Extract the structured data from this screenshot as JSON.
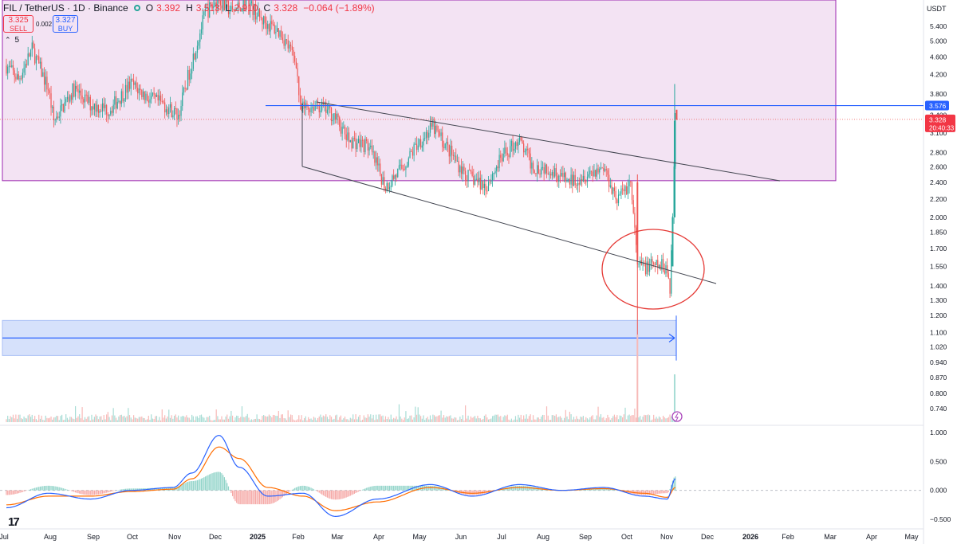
{
  "header": {
    "symbol": "FIL / TetherUS · 1D · Binance",
    "o_label": "O",
    "o": "3.392",
    "h_label": "H",
    "h": "3.513",
    "l_label": "L",
    "l": "2.910",
    "c_label": "C",
    "c": "3.328",
    "change": "−0.064 (−1.89%)"
  },
  "trade": {
    "sell_price": "3.325",
    "sell_label": "SELL",
    "spread": "0.002",
    "buy_price": "3.327",
    "buy_label": "BUY",
    "indicator_count": "5"
  },
  "axis_currency": "USDT",
  "colors": {
    "up": "#26a69a",
    "down": "#ef5350",
    "zone_fill": "#f3e3f3",
    "zone_border": "#9c27b0",
    "blue_line": "#2962ff",
    "circle": "#e53935",
    "macd_line": "#2962ff",
    "signal_line": "#ff6d00"
  },
  "chart_data": [
    {
      "type": "line",
      "title": "",
      "price_scale": "log",
      "y_ticks": [
        "5.400",
        "5.000",
        "4.600",
        "4.200",
        "3.800",
        "3.400",
        "3.100",
        "2.800",
        "2.600",
        "2.400",
        "2.200",
        "2.000",
        "1.850",
        "1.700",
        "1.550",
        "1.400",
        "1.300",
        "1.200",
        "1.100",
        "1.020",
        "0.940",
        "0.870",
        "0.800",
        "0.740"
      ],
      "x_ticks": [
        "Jul",
        "Aug",
        "Sep",
        "Oct",
        "Nov",
        "Dec",
        "2025",
        "Feb",
        "Mar",
        "Apr",
        "May",
        "Jun",
        "Jul",
        "Aug",
        "Sep",
        "Oct",
        "Nov",
        "Dec",
        "2026",
        "Feb",
        "Mar",
        "Apr",
        "May"
      ],
      "ylim": [
        0.72,
        5.8
      ],
      "last_price": "3.328",
      "countdown": "20:40:33",
      "level_label": "3.576",
      "series": [
        {
          "x": [
            "2024-07-01",
            "2024-07-10",
            "2024-07-20",
            "2024-08-01",
            "2024-08-05",
            "2024-08-20",
            "2024-09-01",
            "2024-09-15",
            "2024-10-01",
            "2024-10-15",
            "2024-10-25",
            "2024-11-05",
            "2024-11-15",
            "2024-11-25",
            "2024-12-05",
            "2024-12-15",
            "2024-12-25",
            "2025-01-05",
            "2025-01-20",
            "2025-01-31",
            "2025-02-03",
            "2025-02-15",
            "2025-02-28",
            "2025-03-10",
            "2025-03-25",
            "2025-04-07",
            "2025-04-20",
            "2025-05-01",
            "2025-05-12",
            "2025-05-25",
            "2025-06-05",
            "2025-06-20",
            "2025-07-01",
            "2025-07-14",
            "2025-07-25",
            "2025-08-05",
            "2025-08-20",
            "2025-09-01",
            "2025-09-15",
            "2025-09-25",
            "2025-10-05",
            "2025-10-10",
            "2025-10-20",
            "2025-10-31",
            "2025-11-03",
            "2025-11-05",
            "2025-11-07"
          ],
          "values": [
            4.4,
            4.1,
            4.8,
            3.9,
            3.3,
            3.9,
            3.6,
            3.5,
            4.0,
            3.7,
            3.6,
            3.4,
            4.5,
            5.8,
            6.2,
            5.8,
            6.2,
            5.6,
            5.2,
            4.5,
            3.5,
            3.6,
            3.4,
            3.0,
            2.9,
            2.35,
            2.6,
            2.95,
            3.2,
            2.8,
            2.5,
            2.35,
            2.7,
            3.0,
            2.6,
            2.6,
            2.4,
            2.5,
            2.6,
            2.2,
            2.4,
            1.55,
            1.55,
            1.55,
            1.4,
            2.0,
            3.33
          ]
        }
      ],
      "annotations": [
        "purple resistance zone 2.42–6.0",
        "descending channel",
        "support zone 0.98–1.15",
        "horizontal level 3.576",
        "circle around Oct–Nov 2025 breakdown"
      ]
    },
    {
      "type": "line",
      "title": "",
      "y_ticks": [
        "1.000",
        "0.500",
        "0.000",
        "−0.500"
      ],
      "ylim": [
        -0.55,
        1.05
      ],
      "series": [
        {
          "name": "",
          "x": [
            "2024-07-01",
            "2024-08-01",
            "2024-09-01",
            "2024-10-01",
            "2024-11-01",
            "2024-11-15",
            "2024-12-05",
            "2024-12-20",
            "2025-01-10",
            "2025-02-05",
            "2025-03-01",
            "2025-04-01",
            "2025-05-10",
            "2025-06-10",
            "2025-07-15",
            "2025-08-15",
            "2025-09-15",
            "2025-10-15",
            "2025-11-01",
            "2025-11-07"
          ],
          "values": [
            -0.3,
            -0.05,
            -0.15,
            0.0,
            0.05,
            0.3,
            0.95,
            0.4,
            -0.1,
            -0.05,
            -0.45,
            -0.15,
            0.1,
            -0.1,
            0.1,
            0.0,
            0.05,
            -0.1,
            -0.15,
            0.2
          ]
        },
        {
          "name": "",
          "x": [
            "2024-07-01",
            "2024-08-01",
            "2024-09-01",
            "2024-10-01",
            "2024-11-01",
            "2024-11-15",
            "2024-12-05",
            "2024-12-20",
            "2025-01-10",
            "2025-02-05",
            "2025-03-01",
            "2025-04-01",
            "2025-05-10",
            "2025-06-10",
            "2025-07-15",
            "2025-08-15",
            "2025-09-15",
            "2025-10-15",
            "2025-11-01",
            "2025-11-07"
          ],
          "values": [
            -0.25,
            -0.1,
            -0.1,
            -0.02,
            0.02,
            0.2,
            0.75,
            0.55,
            0.05,
            -0.1,
            -0.35,
            -0.2,
            0.05,
            -0.05,
            0.05,
            0.0,
            0.03,
            -0.05,
            -0.12,
            0.05
          ]
        }
      ]
    }
  ]
}
